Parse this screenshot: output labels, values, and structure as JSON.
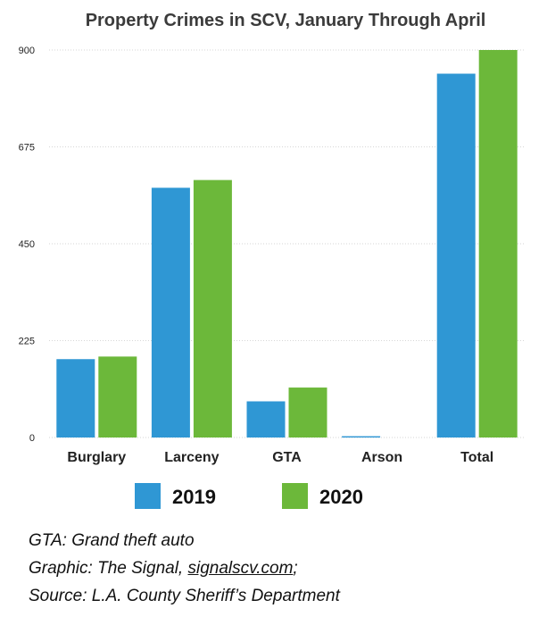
{
  "chart_data": {
    "type": "bar",
    "title": "Property Crimes in SCV, January Through April",
    "categories": [
      "Burglary",
      "Larceny",
      "GTA",
      "Arson",
      "Total"
    ],
    "series": [
      {
        "name": "2019",
        "color": "#2f97d4",
        "values": [
          182,
          580,
          84,
          3,
          845
        ]
      },
      {
        "name": "2020",
        "color": "#6cb83a",
        "values": [
          188,
          598,
          116,
          0,
          900
        ]
      }
    ],
    "ylim": [
      0,
      900
    ],
    "yticks": [
      0,
      225,
      450,
      675,
      900
    ],
    "grid": true,
    "legend": "bottom-center"
  },
  "notes": {
    "line1": "GTA: Grand theft auto",
    "line2_prefix": "Graphic: The Signal, ",
    "line2_link": "signalscv.com",
    "line2_suffix": ";",
    "line3": "Source: L.A. County Sheriff’s Department"
  }
}
